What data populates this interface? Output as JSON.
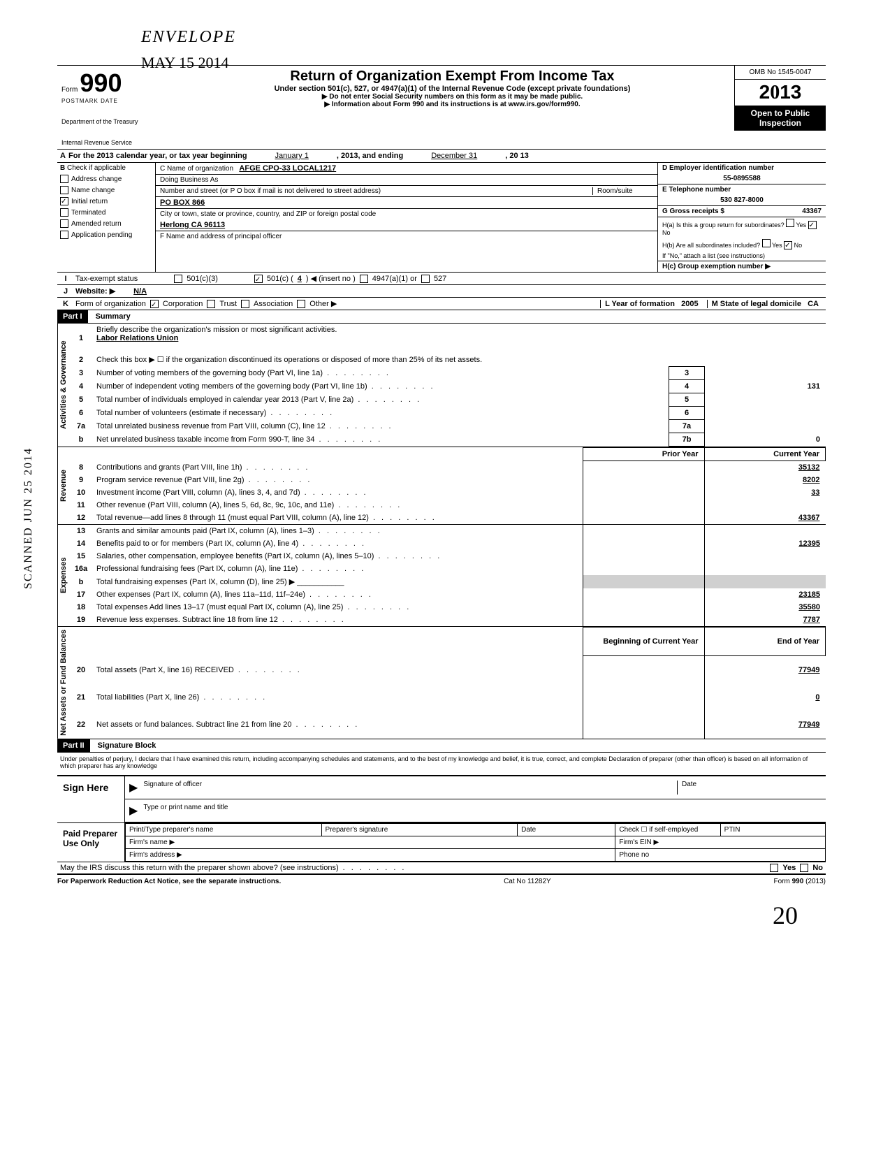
{
  "stamps": {
    "envelope": "ENVELOPE",
    "dateStamp": "MAY 15 2014",
    "scanned": "SCANNED JUN 25 2014",
    "handwritten": "20"
  },
  "header": {
    "formWord": "Form",
    "formNumber": "990",
    "dept1": "Department of the Treasury",
    "dept2": "Internal Revenue Service",
    "title": "Return of Organization Exempt From Income Tax",
    "subtitle": "Under section 501(c), 527, or 4947(a)(1) of the Internal Revenue Code (except private foundations)",
    "note1": "▶ Do not enter Social Security numbers on this form as it may be made public.",
    "note2": "▶ Information about Form 990 and its instructions is at www.irs.gov/form990.",
    "omb": "OMB No 1545-0047",
    "year": "2013",
    "open1": "Open to Public",
    "open2": "Inspection",
    "postmark": "POSTMARK DATE"
  },
  "rowA": {
    "letter": "A",
    "text1": "For the 2013 calendar year, or tax year beginning",
    "begin": "January 1",
    "text2": ", 2013, and ending",
    "end": "December 31",
    "yearEnd": ", 20  13"
  },
  "colB": {
    "letter": "B",
    "header": "Check if applicable",
    "items": [
      {
        "label": "Address change",
        "checked": false
      },
      {
        "label": "Name change",
        "checked": false
      },
      {
        "label": "Initial return",
        "checked": true
      },
      {
        "label": "Terminated",
        "checked": false
      },
      {
        "label": "Amended return",
        "checked": false
      },
      {
        "label": "Application pending",
        "checked": false
      }
    ]
  },
  "colC": {
    "nameLabel": "C Name of organization",
    "name": "AFGE CPO-33 LOCAL1217",
    "dbaLabel": "Doing Business As",
    "dba": "",
    "streetLabel": "Number and street (or P O  box if mail is not delivered to street address)",
    "roomLabel": "Room/suite",
    "street": "PO BOX 866",
    "cityLabel": "City or town, state or province, country, and ZIP or foreign postal code",
    "city": "Herlong  CA  96113",
    "fLabel": "F Name and address of principal officer"
  },
  "colD": {
    "einLabel": "D Employer identification number",
    "ein": "55-0895588",
    "phoneLabel": "E Telephone number",
    "phone": "530 827-8000",
    "grossLabel": "G Gross receipts $",
    "gross": "43367",
    "haLabel": "H(a) Is this a group return for subordinates?",
    "haYes": "Yes",
    "haNo": "No",
    "hbLabel": "H(b) Are all subordinates included?",
    "hbYes": "Yes",
    "hbNo": "No",
    "hbNote": "If \"No,\" attach a list (see instructions)",
    "hcLabel": "H(c) Group exemption number ▶"
  },
  "rowI": {
    "letter": "I",
    "label": "Tax-exempt status",
    "opt1": "501(c)(3)",
    "opt2": "501(c) (",
    "optNum": "4",
    "opt2b": ") ◀ (insert no )",
    "opt3": "4947(a)(1) or",
    "opt4": "527"
  },
  "rowJ": {
    "letter": "J",
    "label": "Website: ▶",
    "val": "N/A"
  },
  "rowK": {
    "letter": "K",
    "label": "Form of organization",
    "opts": [
      "Corporation",
      "Trust",
      "Association",
      "Other ▶"
    ],
    "checked": 0,
    "yearLabel": "L Year of formation",
    "year": "2005",
    "stateLabel": "M State of legal domicile",
    "state": "CA"
  },
  "partI": {
    "header": "Part I",
    "title": "Summary",
    "groups": [
      {
        "label": "Activities & Governance",
        "rows": [
          {
            "num": "1",
            "text": "Briefly describe the organization's mission or most significant activities.",
            "underline": "Labor Relations Union"
          },
          {
            "num": "2",
            "text": "Check this box ▶ ☐ if the organization discontinued its operations or disposed of more than 25% of its net assets."
          },
          {
            "num": "3",
            "text": "Number of voting members of the governing body (Part VI, line 1a)",
            "box": "3",
            "boxval": ""
          },
          {
            "num": "4",
            "text": "Number of independent voting members of the governing body (Part VI, line 1b)",
            "box": "4",
            "boxval": "131"
          },
          {
            "num": "5",
            "text": "Total number of individuals employed in calendar year 2013 (Part V, line 2a)",
            "box": "5",
            "boxval": ""
          },
          {
            "num": "6",
            "text": "Total number of volunteers (estimate if necessary)",
            "box": "6",
            "boxval": ""
          },
          {
            "num": "7a",
            "text": "Total unrelated business revenue from Part VIII, column (C), line 12",
            "box": "7a",
            "boxval": ""
          },
          {
            "num": "b",
            "text": "Net unrelated business taxable income from Form 990-T, line 34",
            "box": "7b",
            "boxval": "0"
          }
        ]
      },
      {
        "label": "Revenue",
        "colheaders": [
          "Prior Year",
          "Current Year"
        ],
        "rows": [
          {
            "num": "8",
            "text": "Contributions and grants (Part VIII, line 1h)",
            "prior": "",
            "curr": "35132"
          },
          {
            "num": "9",
            "text": "Program service revenue (Part VIII, line 2g)",
            "prior": "",
            "curr": "8202"
          },
          {
            "num": "10",
            "text": "Investment income (Part VIII, column (A), lines 3, 4, and 7d)",
            "prior": "",
            "curr": "33"
          },
          {
            "num": "11",
            "text": "Other revenue (Part VIII, column (A), lines 5, 6d, 8c, 9c, 10c, and 11e)",
            "prior": "",
            "curr": ""
          },
          {
            "num": "12",
            "text": "Total revenue—add lines 8 through 11 (must equal Part VIII, column (A), line 12)",
            "prior": "",
            "curr": "43367"
          }
        ]
      },
      {
        "label": "Expenses",
        "rows": [
          {
            "num": "13",
            "text": "Grants and similar amounts paid (Part IX, column (A), lines 1–3)",
            "prior": "",
            "curr": ""
          },
          {
            "num": "14",
            "text": "Benefits paid to or for members (Part IX, column (A), line 4)",
            "prior": "",
            "curr": "12395"
          },
          {
            "num": "15",
            "text": "Salaries, other compensation, employee benefits (Part IX, column (A), lines 5–10)",
            "prior": "",
            "curr": ""
          },
          {
            "num": "16a",
            "text": "Professional fundraising fees (Part IX, column (A),  line 11e)",
            "prior": "",
            "curr": ""
          },
          {
            "num": "b",
            "text": "Total fundraising expenses (Part IX, column (D), line 25) ▶ ___________",
            "single": true
          },
          {
            "num": "17",
            "text": "Other expenses (Part IX, column (A), lines 11a–11d, 11f–24e)",
            "prior": "",
            "curr": "23185"
          },
          {
            "num": "18",
            "text": "Total expenses  Add lines 13–17 (must equal Part IX, column (A), line 25)",
            "prior": "",
            "curr": "35580"
          },
          {
            "num": "19",
            "text": "Revenue less expenses. Subtract line 18 from line 12",
            "prior": "",
            "curr": "7787"
          }
        ]
      },
      {
        "label": "Net Assets or Fund Balances",
        "colheaders": [
          "Beginning of Current Year",
          "End of Year"
        ],
        "rows": [
          {
            "num": "20",
            "text": "Total assets (Part X, line 16) RECEIVED",
            "prior": "",
            "curr": "77949"
          },
          {
            "num": "21",
            "text": "Total liabilities (Part X, line 26)",
            "prior": "",
            "curr": "0"
          },
          {
            "num": "22",
            "text": "Net assets or fund balances. Subtract line 21 from line 20",
            "prior": "",
            "curr": "77949"
          }
        ]
      }
    ]
  },
  "partII": {
    "header": "Part II",
    "title": "Signature Block",
    "declaration": "Under penalties of perjury, I declare that I have examined this return, including accompanying schedules and statements, and to the best of my knowledge  and belief, it is true, correct, and complete  Declaration of preparer (other than officer) is based on all information of which preparer has any knowledge",
    "signHere": "Sign Here",
    "sigOfficer": "Signature of officer",
    "date": "Date",
    "typeName": "Type or print name and title",
    "paidPrep": "Paid Preparer Use Only",
    "prepName": "Print/Type preparer's name",
    "prepSig": "Preparer's signature",
    "checkIf": "Check ☐ if self-employed",
    "ptin": "PTIN",
    "firmName": "Firm's name    ▶",
    "firmEin": "Firm's EIN ▶",
    "firmAddr": "Firm's address ▶",
    "phoneNo": "Phone no",
    "irsDiscuss": "May the IRS discuss this return with the preparer shown above? (see instructions)",
    "yes": "Yes",
    "no": "No"
  },
  "footer": {
    "left": "For Paperwork Reduction Act Notice, see the separate instructions.",
    "mid": "Cat  No  11282Y",
    "right": "Form 990 (2013)"
  }
}
